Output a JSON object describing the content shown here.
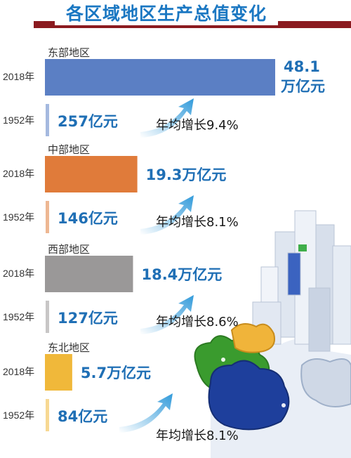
{
  "title": "各区域地区生产总值变化",
  "colors": {
    "accent": "#8b1a1f",
    "title": "#1a77c2",
    "value": "#1f6fb5"
  },
  "chart_data": {
    "type": "bar",
    "title": "各区域地区生产总值变化",
    "unit_note": "亿元",
    "regions": [
      {
        "name": "东部地区",
        "color": "#5b7fc4",
        "v2018": 481000,
        "v1952": 257,
        "label2018_line1": "48.1",
        "label2018_line2": "万亿元",
        "label1952": "257亿元",
        "growth": "年均增长9.4%"
      },
      {
        "name": "中部地区",
        "color": "#e07b3a",
        "v2018": 193000,
        "v1952": 146,
        "label2018_line1": "19.3万亿元",
        "label2018_line2": "",
        "label1952": "146亿元",
        "growth": "年均增长8.1%"
      },
      {
        "name": "西部地区",
        "color": "#9a9898",
        "v2018": 184000,
        "v1952": 127,
        "label2018_line1": "18.4万亿元",
        "label2018_line2": "",
        "label1952": "127亿元",
        "growth": "年均增长8.6%"
      },
      {
        "name": "东北地区",
        "color": "#f0b83a",
        "v2018": 57000,
        "v1952": 84,
        "label2018_line1": "5.7万亿元",
        "label2018_line2": "",
        "label1952": "84亿元",
        "growth": "年均增长8.1%"
      }
    ],
    "years": [
      "2018年",
      "1952年"
    ]
  }
}
